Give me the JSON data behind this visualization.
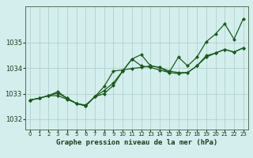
{
  "title": "Graphe pression niveau de la mer (hPa)",
  "bg_color": "#d4eeee",
  "grid_color": "#aacaca",
  "line_color": "#1a5c1a",
  "marker_color": "#1a5c1a",
  "xlim": [
    -0.5,
    23.5
  ],
  "ylim": [
    1031.6,
    1036.4
  ],
  "yticks": [
    1032,
    1033,
    1034,
    1035
  ],
  "xticks": [
    0,
    1,
    2,
    3,
    4,
    5,
    6,
    7,
    8,
    9,
    10,
    11,
    12,
    13,
    14,
    15,
    16,
    17,
    18,
    19,
    20,
    21,
    22,
    23
  ],
  "series1": [
    1032.75,
    1032.82,
    1032.92,
    1032.92,
    1032.78,
    1032.62,
    1032.55,
    1032.88,
    1033.0,
    1033.32,
    1033.88,
    1034.35,
    1034.08,
    1034.02,
    1033.92,
    1033.82,
    1034.42,
    1034.08,
    1034.42,
    1035.02,
    1035.32,
    1035.72,
    1035.12,
    1035.92
  ],
  "series2": [
    1032.75,
    1032.82,
    1032.92,
    1033.02,
    1032.82,
    1032.62,
    1032.52,
    1032.88,
    1033.28,
    1033.88,
    1033.92,
    1033.98,
    1034.02,
    1034.08,
    1034.02,
    1033.82,
    1033.78,
    1033.82,
    1034.08,
    1034.42,
    1034.58,
    1034.72,
    1034.62,
    1034.78
  ],
  "series3": [
    1032.75,
    1032.82,
    1032.92,
    1033.08,
    1032.82,
    1032.62,
    1032.52,
    1032.88,
    1033.12,
    1033.42,
    1033.88,
    1034.35,
    1034.52,
    1034.08,
    1034.02,
    1033.88,
    1033.82,
    1033.82,
    1034.08,
    1034.48,
    1034.58,
    1034.72,
    1034.62,
    1034.78
  ]
}
